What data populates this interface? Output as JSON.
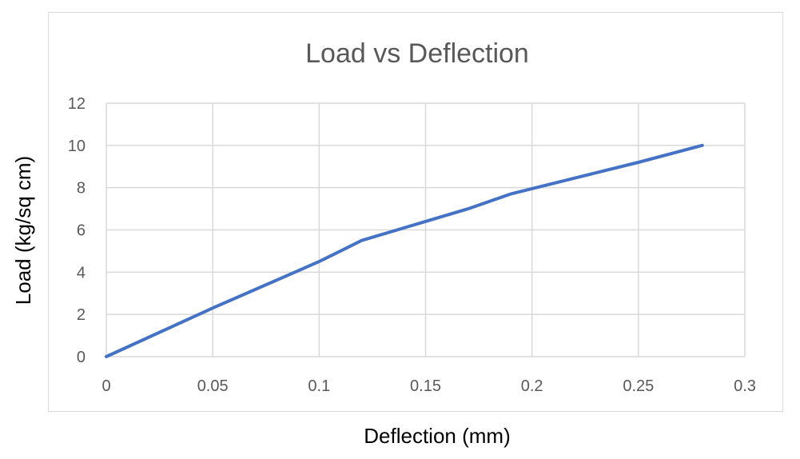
{
  "chart_data": {
    "type": "line",
    "title": "Load vs Deflection",
    "xlabel": "Deflection (mm)",
    "ylabel": "Load (kg/sq cm)",
    "xlim": [
      0,
      0.3
    ],
    "ylim": [
      0,
      12
    ],
    "x_ticks": [
      "0",
      "0.05",
      "0.1",
      "0.15",
      "0.2",
      "0.25",
      "0.3"
    ],
    "y_ticks": [
      "0",
      "2",
      "4",
      "6",
      "8",
      "10",
      "12"
    ],
    "grid": true,
    "legend": "none",
    "series": [
      {
        "color": "#4472c4",
        "x": [
          0,
          0.05,
          0.1,
          0.11,
          0.12,
          0.15,
          0.17,
          0.19,
          0.25,
          0.28
        ],
        "y": [
          0,
          2.3,
          4.5,
          5.0,
          5.5,
          6.4,
          7.0,
          7.7,
          9.2,
          10
        ]
      }
    ]
  }
}
